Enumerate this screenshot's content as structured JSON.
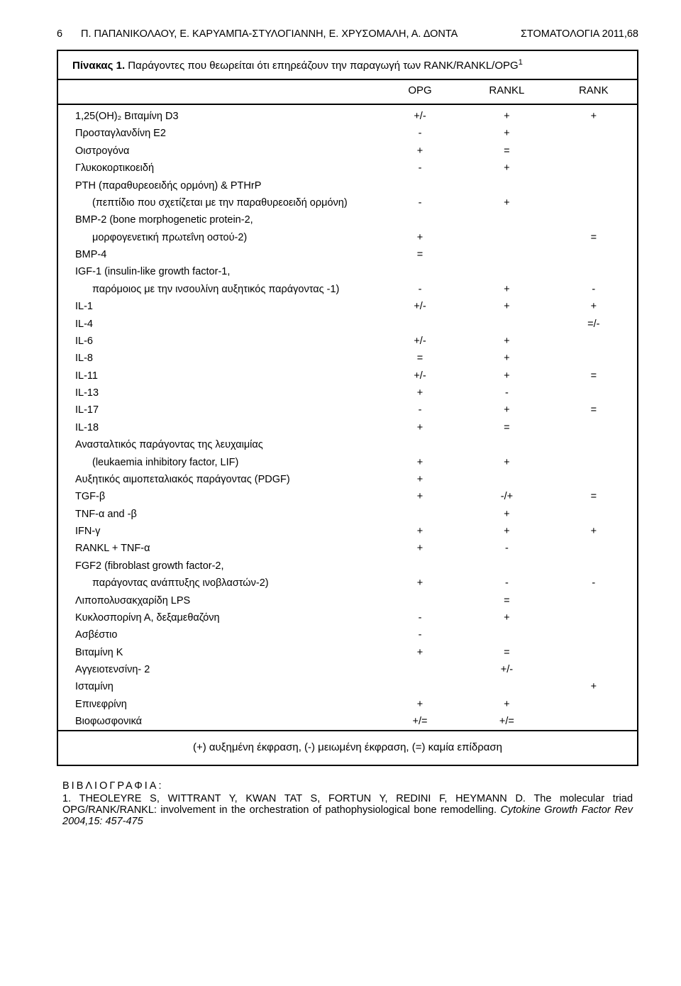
{
  "header": {
    "page_number": "6",
    "authors": "Π. ΠΑΠΑΝΙΚΟΛΑΟΥ, Ε. ΚΑΡΥΑΜΠΑ-ΣΤΥΛΟΓΙΑΝΝΗ, Ε. ΧΡΥΣΟΜΑΛΗ, Α. ΔΟΝΤΑ",
    "journal": "ΣΤΟΜΑΤΟΛΟΓΙΑ 2011,68"
  },
  "table": {
    "caption_bold": "Πίνακας 1.",
    "caption_rest": " Παράγοντες που θεωρείται ότι επηρεάζουν την παραγωγή των RANK/RANKL/OPG",
    "caption_sup": "1",
    "columns": [
      "OPG",
      "RANKL",
      "RANK"
    ],
    "rows": [
      {
        "label": "1,25(OH)₂ Βιταμίνη D3",
        "c": [
          "+/-",
          "+",
          "+"
        ]
      },
      {
        "label": "Προσταγλανδίνη Ε2",
        "c": [
          "-",
          "+",
          ""
        ]
      },
      {
        "label": "Οιστρογόνα",
        "c": [
          "+",
          "=",
          ""
        ]
      },
      {
        "label": "Γλυκοκορτικοειδή",
        "c": [
          "-",
          "+",
          ""
        ]
      },
      {
        "label": "PTH (παραθυρεοειδής ορμόνη) & PTHrP",
        "c": [
          "",
          "",
          ""
        ]
      },
      {
        "label": "(πεπτίδιο που σχετίζεται με την παραθυρεοειδή ορμόνη)",
        "c": [
          "-",
          "+",
          ""
        ],
        "indent": true,
        "merge_up": true
      },
      {
        "label": "BMP-2 (bone morphogenetic protein-2,",
        "c": [
          "",
          "",
          ""
        ]
      },
      {
        "label": "μορφογενετική πρωτεΐνη οστού-2)",
        "c": [
          "+",
          "",
          "="
        ],
        "indent": true,
        "merge_up": true
      },
      {
        "label": "BMP-4",
        "c": [
          "=",
          "",
          ""
        ]
      },
      {
        "label": "IGF-1 (insulin-like growth factor-1,",
        "c": [
          "",
          "",
          ""
        ]
      },
      {
        "label": "παρόμοιος με την ινσουλίνη αυξητικός παράγοντας -1)",
        "c": [
          "-",
          "+",
          "-"
        ],
        "indent": true,
        "merge_up": true
      },
      {
        "label": "IL-1",
        "c": [
          "+/-",
          "+",
          "+"
        ]
      },
      {
        "label": "IL-4",
        "c": [
          "",
          "",
          "=/-"
        ]
      },
      {
        "label": "IL-6",
        "c": [
          "+/-",
          "+",
          ""
        ]
      },
      {
        "label": "IL-8",
        "c": [
          "=",
          "+",
          ""
        ]
      },
      {
        "label": "IL-11",
        "c": [
          "+/-",
          "+",
          "="
        ]
      },
      {
        "label": "IL-13",
        "c": [
          "+",
          "-",
          ""
        ]
      },
      {
        "label": "IL-17",
        "c": [
          "-",
          "+",
          "="
        ]
      },
      {
        "label": "IL-18",
        "c": [
          "+",
          "=",
          ""
        ]
      },
      {
        "label": "Ανασταλτικός παράγοντας της λευχαιμίας",
        "c": [
          "",
          "",
          ""
        ]
      },
      {
        "label": "(leukaemia inhibitory factor, LIF)",
        "c": [
          "+",
          "+",
          ""
        ],
        "indent": true,
        "merge_up": true
      },
      {
        "label": "Αυξητικός αιμοπεταλιακός παράγοντας (PDGF)",
        "c": [
          "+",
          "",
          ""
        ]
      },
      {
        "label": "TGF-β",
        "c": [
          "+",
          "-/+",
          "="
        ]
      },
      {
        "label": "TNF-α and -β",
        "c": [
          "",
          "+",
          ""
        ]
      },
      {
        "label": "IFN-γ",
        "c": [
          "+",
          "+",
          "+"
        ]
      },
      {
        "label": "RANKL + TNF-α",
        "c": [
          "+",
          "-",
          ""
        ]
      },
      {
        "label": "FGF2 (fibroblast growth factor-2,",
        "c": [
          "",
          "",
          ""
        ]
      },
      {
        "label": "παράγοντας ανάπτυξης ινοβλαστών-2)",
        "c": [
          "+",
          "-",
          "-"
        ],
        "indent": true,
        "merge_up": true
      },
      {
        "label": "Λιποπολυσακχαρίδη LPS",
        "c": [
          "",
          "=",
          ""
        ]
      },
      {
        "label": "Κυκλοσπορίνη Α, δεξαμεθαζόνη",
        "c": [
          "-",
          "+",
          ""
        ]
      },
      {
        "label": "Ασβέστιο",
        "c": [
          "-",
          "",
          ""
        ]
      },
      {
        "label": "Βιταμίνη Κ",
        "c": [
          "+",
          "=",
          ""
        ]
      },
      {
        "label": "Αγγειοτενσίνη- 2",
        "c": [
          "",
          "+/-",
          ""
        ]
      },
      {
        "label": "Ισταμίνη",
        "c": [
          "",
          "",
          "+"
        ]
      },
      {
        "label": "Επινεφρίνη",
        "c": [
          "+",
          "+",
          ""
        ]
      },
      {
        "label": "Βιοφωσφονικά",
        "c": [
          "+/=",
          "+/=",
          ""
        ]
      }
    ],
    "legend": "(+) αυξημένη έκφραση,    (-) μειωμένη έκφραση,    (=) καμία επίδραση"
  },
  "biblio": {
    "title": "ΒΙΒΛΙΟΓΡΑΦΙΑ:",
    "entry_num": "1. ",
    "authors": "THEOLEYRE S, WITTRANT Y, KWAN TAT S, FORTUN Y, REDINI F, HEYMANN D. ",
    "title_text": "The molecular triad OPG/RANK/RANKL: involvement in the orchestration of pathophysiological bone remodelling. ",
    "journal": "Cytokine Growth Factor Rev 2004,15: 457-475"
  }
}
